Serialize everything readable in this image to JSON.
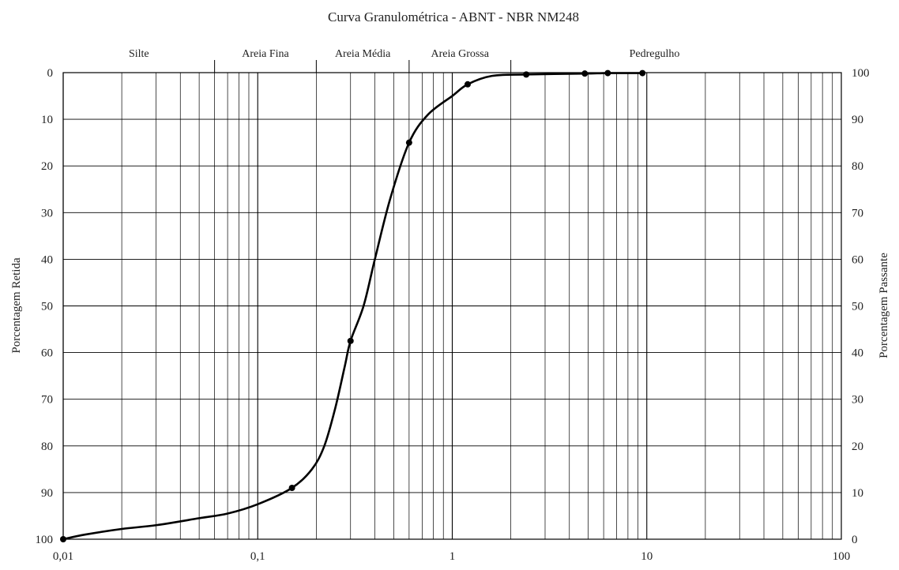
{
  "chart_data": {
    "type": "line",
    "title": "Curva Granulométrica - ABNT - NBR NM248",
    "ylabel_left": "Porcentagem Retida",
    "ylabel_right": "Porcentagem Passante",
    "x_scale": "log",
    "xlim": [
      0.01,
      100
    ],
    "x_tick_labels": [
      {
        "value": 0.01,
        "label": "0,01"
      },
      {
        "value": 0.1,
        "label": "0,1"
      },
      {
        "value": 1,
        "label": "1"
      },
      {
        "value": 10,
        "label": "10"
      },
      {
        "value": 100,
        "label": "100"
      }
    ],
    "y_left_ticks": [
      "0",
      "10",
      "20",
      "30",
      "40",
      "50",
      "60",
      "70",
      "80",
      "90",
      "100"
    ],
    "y_right_ticks": [
      "100",
      "90",
      "80",
      "70",
      "60",
      "50",
      "40",
      "30",
      "20",
      "10",
      "0"
    ],
    "ylim_left": [
      0,
      100
    ],
    "y_left_inverted": true,
    "grid": true,
    "bands": [
      {
        "label": "Silte",
        "from": 0.01,
        "to": 0.06
      },
      {
        "label": "Areia Fina",
        "from": 0.06,
        "to": 0.2
      },
      {
        "label": "Areia Média",
        "from": 0.2,
        "to": 0.6
      },
      {
        "label": "Areia Grossa",
        "from": 0.6,
        "to": 2.0
      },
      {
        "label": "Pedregulho",
        "from": 2.0,
        "to": 60
      }
    ],
    "series": [
      {
        "color": "#000000",
        "markers": [
          {
            "x": 0.01,
            "y": 100
          },
          {
            "x": 0.15,
            "y": 89
          },
          {
            "x": 0.3,
            "y": 57.5
          },
          {
            "x": 0.6,
            "y": 15
          },
          {
            "x": 1.2,
            "y": 2.5
          },
          {
            "x": 2.4,
            "y": 0.4
          },
          {
            "x": 4.8,
            "y": 0.2
          },
          {
            "x": 6.3,
            "y": 0.1
          },
          {
            "x": 9.5,
            "y": 0.1
          }
        ],
        "curve": [
          {
            "x": 0.01,
            "y": 100
          },
          {
            "x": 0.013,
            "y": 99
          },
          {
            "x": 0.02,
            "y": 97.8
          },
          {
            "x": 0.03,
            "y": 97
          },
          {
            "x": 0.05,
            "y": 95.5
          },
          {
            "x": 0.07,
            "y": 94.5
          },
          {
            "x": 0.1,
            "y": 92.5
          },
          {
            "x": 0.15,
            "y": 89
          },
          {
            "x": 0.19,
            "y": 85
          },
          {
            "x": 0.22,
            "y": 80
          },
          {
            "x": 0.25,
            "y": 72
          },
          {
            "x": 0.28,
            "y": 63
          },
          {
            "x": 0.3,
            "y": 57.5
          },
          {
            "x": 0.35,
            "y": 50
          },
          {
            "x": 0.4,
            "y": 40
          },
          {
            "x": 0.48,
            "y": 27
          },
          {
            "x": 0.6,
            "y": 15
          },
          {
            "x": 0.75,
            "y": 9
          },
          {
            "x": 1.0,
            "y": 5
          },
          {
            "x": 1.2,
            "y": 2.5
          },
          {
            "x": 1.6,
            "y": 0.7
          },
          {
            "x": 2.4,
            "y": 0.4
          },
          {
            "x": 4.8,
            "y": 0.2
          },
          {
            "x": 6.3,
            "y": 0.1
          },
          {
            "x": 9.5,
            "y": 0.1
          }
        ]
      }
    ]
  }
}
